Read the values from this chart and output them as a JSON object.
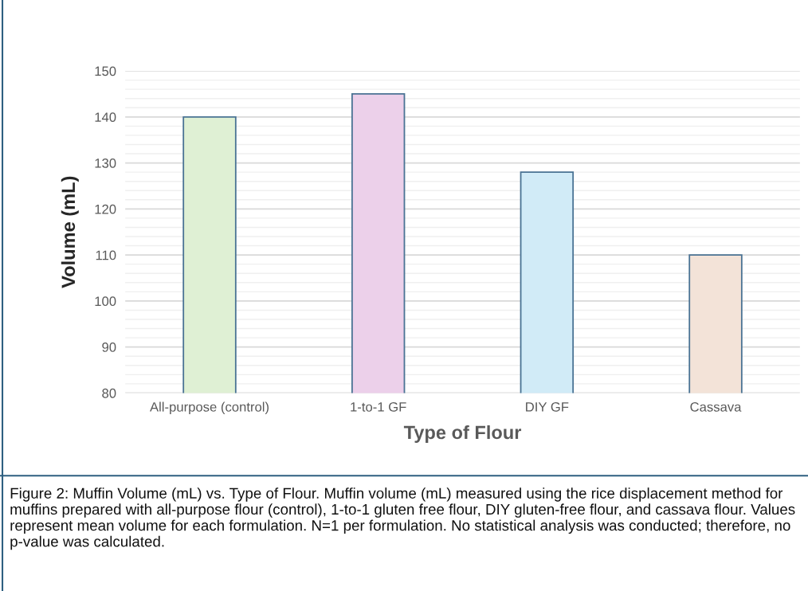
{
  "chart_data": {
    "type": "bar",
    "xlabel": "Type of Flour",
    "ylabel": "Volume (mL)",
    "categories": [
      "All-purpose (control)",
      "1-to-1 GF",
      "DIY GF",
      "Cassava"
    ],
    "values": [
      140,
      145,
      128,
      110
    ],
    "colors": [
      "#dff0d4",
      "#ecd0ea",
      "#d1ebf7",
      "#f3e3d8"
    ],
    "ylim": [
      80,
      150
    ],
    "yticks": [
      80,
      {
        "value": 82,
        "label": null
      },
      {
        "value": 84,
        "label": null
      },
      {
        "value": 86,
        "label": null
      },
      {
        "value": 88,
        "label": null
      },
      90,
      {
        "value": 92,
        "label": null
      },
      {
        "value": 94,
        "label": null
      },
      {
        "value": 96,
        "label": null
      },
      {
        "value": 98,
        "label": null
      },
      100,
      {
        "value": 102,
        "label": null
      },
      {
        "value": 104,
        "label": null
      },
      {
        "value": 106,
        "label": null
      },
      {
        "value": 108,
        "label": null
      },
      110,
      {
        "value": 112,
        "label": null
      },
      {
        "value": 114,
        "label": null
      },
      {
        "value": 116,
        "label": null
      },
      {
        "value": 118,
        "label": null
      },
      120,
      {
        "value": 122,
        "label": null
      },
      {
        "value": 124,
        "label": null
      },
      {
        "value": 126,
        "label": null
      },
      {
        "value": 128,
        "label": null
      },
      130,
      {
        "value": 132,
        "label": null
      },
      {
        "value": 134,
        "label": null
      },
      {
        "value": 136,
        "label": null
      },
      {
        "value": 138,
        "label": null
      },
      140,
      {
        "value": 142,
        "label": null
      },
      {
        "value": 144,
        "label": null
      },
      {
        "value": 146,
        "label": null
      },
      {
        "value": 148,
        "label": null
      },
      150
    ],
    "grid": "y",
    "annotations": [
      "Figure 2: Muffin Volume (mL) vs. Type of Flour. Muffin volume (mL) measured using the rice displacement method for muffins prepared with all-purpose flour (control), 1-to-1 gluten free flour, DIY gluten-free flour, and cassava flour. Values represent mean volume for each formulation. N=1 per formulation. No statistical analysis was conducted; therefore, no p-value was calculated."
    ]
  }
}
